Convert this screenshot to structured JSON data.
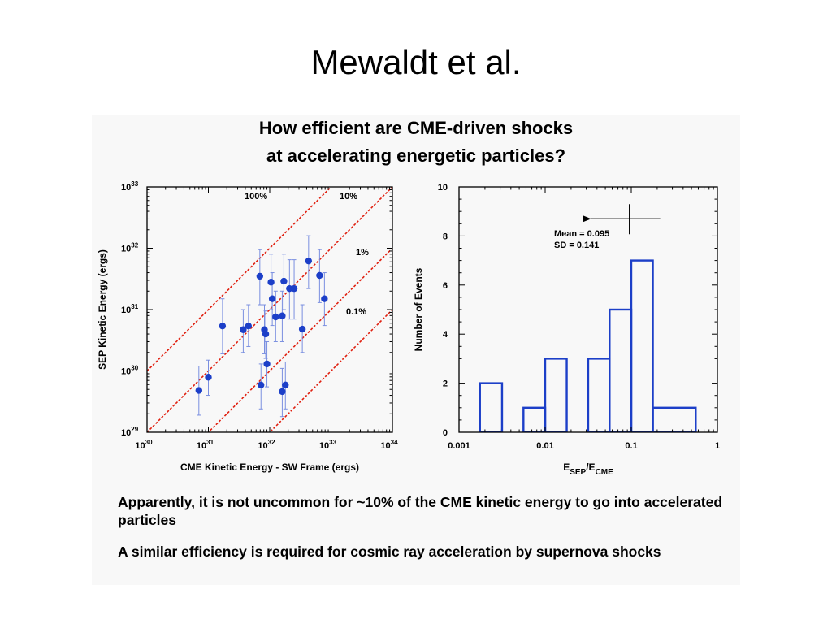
{
  "slide": {
    "title": "Mewaldt et al."
  },
  "panel": {
    "title_line1": "How efficient are CME-driven shocks",
    "title_line2": "at accelerating energetic particles?",
    "bullets": [
      "Apparently,  it is not uncommon for ~10% of the CME kinetic energy to go into accelerated particles",
      "A similar efficiency is required for cosmic ray acceleration by supernova shocks"
    ]
  },
  "chart_data": [
    {
      "type": "scatter",
      "xlabel": "CME Kinetic Energy - SW Frame (ergs)",
      "ylabel": "SEP Kinetic Energy (ergs)",
      "xscale": "log",
      "yscale": "log",
      "xlim": [
        1e+30,
        1e+34
      ],
      "ylim": [
        1e+29,
        1e+33
      ],
      "x_ticks": [
        {
          "base": "10",
          "exp": "30"
        },
        {
          "base": "10",
          "exp": "31"
        },
        {
          "base": "10",
          "exp": "32"
        },
        {
          "base": "10",
          "exp": "33"
        },
        {
          "base": "10",
          "exp": "34"
        }
      ],
      "y_ticks": [
        {
          "base": "10",
          "exp": "29"
        },
        {
          "base": "10",
          "exp": "30"
        },
        {
          "base": "10",
          "exp": "31"
        },
        {
          "base": "10",
          "exp": "32"
        },
        {
          "base": "10",
          "exp": "33"
        }
      ],
      "grid": false,
      "point_color": "#1c3fc8",
      "reference_line_color": "#e02010",
      "reference_lines": [
        {
          "label": "100%",
          "ratio": 1
        },
        {
          "label": "10%",
          "ratio": 0.1
        },
        {
          "label": "1%",
          "ratio": 0.01
        },
        {
          "label": "0.1%",
          "ratio": 0.001
        }
      ],
      "points": [
        {
          "x": 7e+30,
          "y": 4.8e+29,
          "ylo": 1.9e+29,
          "yhi": 1.2e+30
        },
        {
          "x": 1e+31,
          "y": 7.9e+29,
          "ylo": 4e+29,
          "yhi": 1.5e+30
        },
        {
          "x": 1.7e+31,
          "y": 5.4e+30,
          "ylo": 1.9e+30,
          "yhi": 1.5e+31
        },
        {
          "x": 3.7e+31,
          "y": 4.7e+30,
          "ylo": 2e+30,
          "yhi": 1e+31
        },
        {
          "x": 4.5e+31,
          "y": 5.4e+30,
          "ylo": 2.5e+30,
          "yhi": 1.2e+31
        },
        {
          "x": 6.9e+31,
          "y": 3.5e+31,
          "ylo": 1.2e+31,
          "yhi": 9.5e+31
        },
        {
          "x": 7.2e+31,
          "y": 5.9e+29,
          "ylo": 2.4e+29,
          "yhi": 1.3e+30
        },
        {
          "x": 8.2e+31,
          "y": 4.7e+30,
          "ylo": 1.9e+30,
          "yhi": 1.2e+31
        },
        {
          "x": 8.6e+31,
          "y": 4e+30,
          "ylo": 1.6e+30,
          "yhi": 9.5e+30
        },
        {
          "x": 9e+31,
          "y": 1.3e+30,
          "ylo": 5.5e+29,
          "yhi": 3e+30
        },
        {
          "x": 1.05e+32,
          "y": 2.8e+31,
          "ylo": 1e+31,
          "yhi": 8e+31
        },
        {
          "x": 1.1e+32,
          "y": 1.5e+31,
          "ylo": 5.5e+30,
          "yhi": 4e+31
        },
        {
          "x": 1.25e+32,
          "y": 7.6e+30,
          "ylo": 3e+30,
          "yhi": 2e+31
        },
        {
          "x": 1.6e+32,
          "y": 7.9e+30,
          "ylo": 3e+30,
          "yhi": 2e+31
        },
        {
          "x": 1.6e+32,
          "y": 4.6e+29,
          "ylo": 1.8e+29,
          "yhi": 1.1e+30
        },
        {
          "x": 1.7e+32,
          "y": 2.9e+31,
          "ylo": 1e+31,
          "yhi": 8e+31
        },
        {
          "x": 1.8e+32,
          "y": 5.9e+29,
          "ylo": 2.4e+29,
          "yhi": 1.4e+30
        },
        {
          "x": 2.1e+32,
          "y": 2.2e+31,
          "ylo": 7e+30,
          "yhi": 6.5e+31
        },
        {
          "x": 2.5e+32,
          "y": 2.2e+31,
          "ylo": 7e+30,
          "yhi": 6.5e+31
        },
        {
          "x": 3.4e+32,
          "y": 4.8e+30,
          "ylo": 2e+30,
          "yhi": 1.2e+31
        },
        {
          "x": 4.3e+32,
          "y": 6.2e+31,
          "ylo": 2.2e+31,
          "yhi": 1.6e+32
        },
        {
          "x": 6.5e+32,
          "y": 3.6e+31,
          "ylo": 1.3e+31,
          "yhi": 9.5e+31
        },
        {
          "x": 7.8e+32,
          "y": 1.5e+31,
          "ylo": 5.5e+30,
          "yhi": 4e+31
        }
      ]
    },
    {
      "type": "histogram",
      "xlabel_main": "E",
      "xlabel_sub1": "SEP",
      "xlabel_slash": "/E",
      "xlabel_sub2": "CME",
      "ylabel": "Number of Events",
      "xscale": "log",
      "xlim": [
        0.001,
        1
      ],
      "ylim": [
        0,
        10
      ],
      "x_tick_labels": [
        "0.001",
        "0.01",
        "0.1",
        "1"
      ],
      "y_tick_labels": [
        "0",
        "2",
        "4",
        "6",
        "8",
        "10"
      ],
      "grid": false,
      "bar_color": "#1c3fc8",
      "bins": [
        {
          "x0": 0.00175,
          "x1": 0.00316,
          "count": 2
        },
        {
          "x0": 0.00316,
          "x1": 0.0056,
          "count": 0
        },
        {
          "x0": 0.0056,
          "x1": 0.01,
          "count": 1
        },
        {
          "x0": 0.01,
          "x1": 0.0178,
          "count": 3
        },
        {
          "x0": 0.0178,
          "x1": 0.0316,
          "count": 0
        },
        {
          "x0": 0.0316,
          "x1": 0.056,
          "count": 3
        },
        {
          "x0": 0.056,
          "x1": 0.1,
          "count": 5
        },
        {
          "x0": 0.1,
          "x1": 0.178,
          "count": 7
        },
        {
          "x0": 0.178,
          "x1": 0.56,
          "count": 1
        }
      ],
      "mean_marker": {
        "x": 0.095,
        "y": 8.7
      },
      "annotations": [
        "Mean = 0.095",
        "SD = 0.141"
      ]
    }
  ]
}
